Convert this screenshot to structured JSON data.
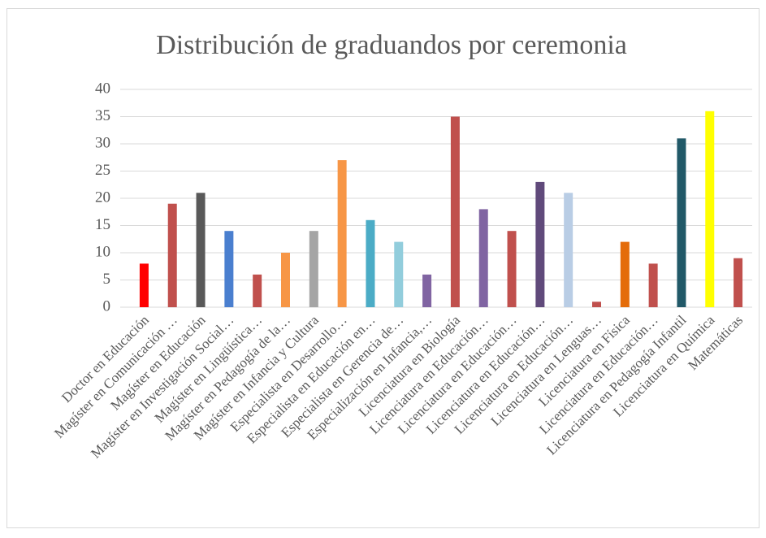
{
  "chart_data": {
    "type": "bar",
    "title": "Distribución de graduandos por ceremonia",
    "categories": [
      "Doctor en Educación",
      "Magíster en Comunicación …",
      "Magíster en Educación",
      "Magíster en Investigación Social…",
      "Magíster en Lingüística…",
      "Magíster en Pedagogía de la…",
      "Magíster en Infancia y Cultura",
      "Especialista en Desarrollo…",
      "Especialista en Educación en…",
      "Especialista en Gerencia de…",
      "Especialización en Infancia,…",
      "Licenciatura en Biología",
      "Licenciatura en Educación…",
      "Licenciatura en Educación…",
      "Licenciatura en Educación…",
      "Licenciatura en Educación…",
      "Licenciatura en Lenguas…",
      "Licenciatura en Física",
      "Licenciatura en Educación…",
      "Licenciatura en Pedagogía Infantil",
      "Licenciatura en Química",
      "Matemáticas"
    ],
    "values": [
      8,
      19,
      21,
      14,
      6,
      10,
      14,
      27,
      16,
      12,
      6,
      35,
      18,
      14,
      23,
      21,
      1,
      12,
      8,
      31,
      36,
      9
    ],
    "colors": [
      "#ff0000",
      "#c0504d",
      "#595959",
      "#4a7fcf",
      "#c0504d",
      "#f79646",
      "#a5a5a5",
      "#f79646",
      "#4bacc6",
      "#92cddc",
      "#8064a2",
      "#c0504d",
      "#8064a2",
      "#c0504d",
      "#604a7b",
      "#b9cde5",
      "#c0504d",
      "#e46c0a",
      "#c0504d",
      "#215968",
      "#ffff00",
      "#c0504d"
    ],
    "ylim": [
      0,
      40
    ],
    "yticks": [
      0,
      5,
      10,
      15,
      20,
      25,
      30,
      35,
      40
    ],
    "grid": true
  }
}
